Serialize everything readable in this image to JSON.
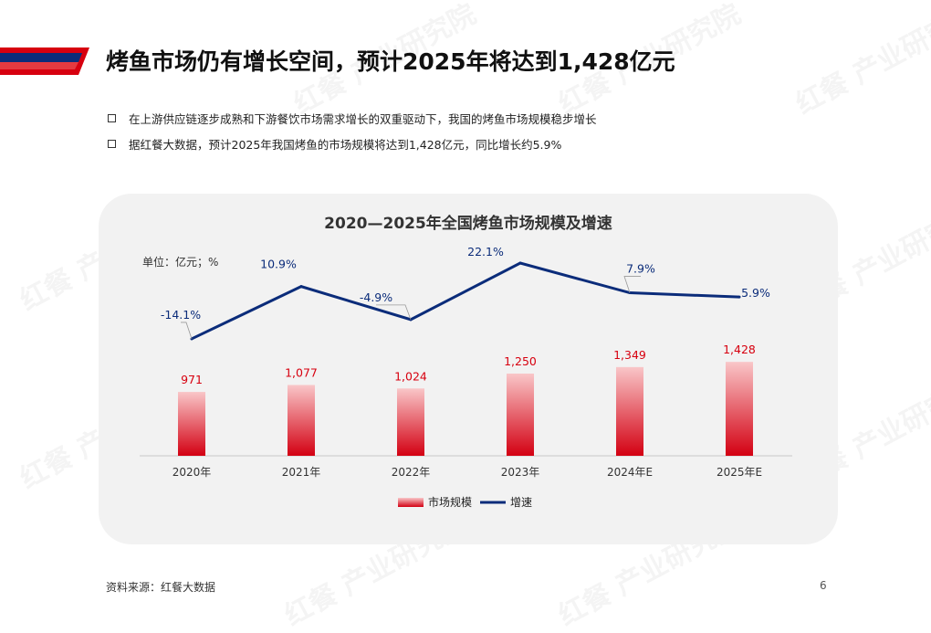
{
  "header": {
    "title": "烤鱼市场仍有增长空间，预计2025年将达到1,428亿元"
  },
  "bullets": [
    "在上游供应链逐步成熟和下游餐饮市场需求增长的双重驱动下，我国的烤鱼市场规模稳步增长",
    "据红餐大数据，预计2025年我国烤鱼的市场规模将达到1,428亿元，同比增长约5.9%"
  ],
  "footer": {
    "source": "资料来源：红餐大数据",
    "page_number": "6"
  },
  "watermark": "红餐 产业研究院",
  "colors": {
    "accent_red": "#d7000f",
    "accent_blue": "#0b2c7a",
    "bar_top": "#f9c6c8",
    "bar_bottom": "#d30012"
  },
  "chart_data": {
    "type": "bar",
    "title": "2020—2025年全国烤鱼市场规模及增速",
    "unit_label": "单位：亿元；%",
    "categories": [
      "2020年",
      "2021年",
      "2022年",
      "2023年",
      "2024年E",
      "2025年E"
    ],
    "series": [
      {
        "name": "市场规模",
        "type": "bar",
        "values": [
          971,
          1077,
          1024,
          1250,
          1349,
          1428
        ],
        "labels": [
          "971",
          "1,077",
          "1,024",
          "1,250",
          "1,349",
          "1,428"
        ]
      },
      {
        "name": "增速",
        "type": "line",
        "values": [
          -14.1,
          10.9,
          -4.9,
          22.1,
          7.9,
          5.9
        ],
        "labels": [
          "-14.1%",
          "10.9%",
          "-4.9%",
          "22.1%",
          "7.9%",
          "5.9%"
        ]
      }
    ],
    "bar_ylim": [
      0,
      3500
    ],
    "line_ylim": [
      -70,
      40
    ],
    "legend": "bottom-center",
    "grid": false
  }
}
